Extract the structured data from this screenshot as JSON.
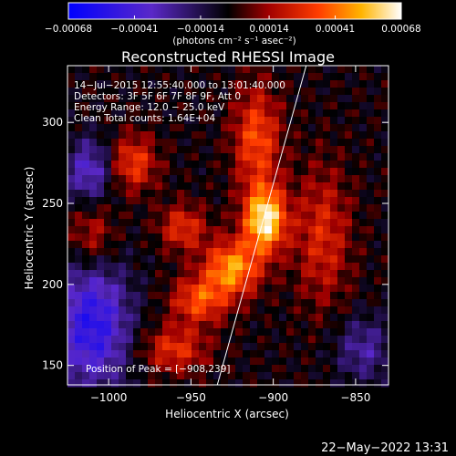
{
  "chart_data": {
    "type": "heatmap",
    "title": "Reconstructed RHESSI Image",
    "xlabel": "Heliocentric X (arcsec)",
    "ylabel": "Heliocentric Y (arcsec)",
    "xlim": [
      -1025,
      -830
    ],
    "ylim": [
      138,
      335
    ],
    "x_ticks": [
      -1000,
      -950,
      -900,
      -850
    ],
    "y_ticks": [
      150,
      200,
      250,
      300
    ],
    "x_tick_labels": [
      "−1000",
      "−950",
      "−900",
      "−850"
    ],
    "y_tick_labels": [
      "150",
      "200",
      "250",
      "300"
    ],
    "colorbar": {
      "range": [
        -0.00068,
        0.00068
      ],
      "ticks": [
        -0.00068,
        -0.00041,
        -0.00014,
        0.00014,
        0.00041,
        0.00068
      ],
      "tick_labels": [
        "−0.00068",
        "−0.00041",
        "−0.00014",
        "0.00014",
        "0.00041",
        "0.00068"
      ],
      "unit_label": "(photons cm⁻² s⁻¹ asec⁻²)"
    },
    "annotations": [
      "14−Jul−2015 12:55:40.000 to 13:01:40.000",
      "Detectors: 3F 5F 6F 7F 8F 9F, Att 0",
      "Energy Range: 12.0 − 25.0 keV",
      "Clean      Total counts: 1.64E+04"
    ],
    "peak_label": "Position of Peak = [−908,239]",
    "peak": [
      -908,
      239
    ],
    "limb_line": [
      [
        -934,
        138
      ],
      [
        -880,
        335
      ]
    ],
    "hot_spots": [
      {
        "x": -905,
        "y": 240,
        "amp": 1.0,
        "sx": 9,
        "sy": 14
      },
      {
        "x": -925,
        "y": 210,
        "amp": 0.75,
        "sx": 12,
        "sy": 12
      },
      {
        "x": -945,
        "y": 190,
        "amp": 0.55,
        "sx": 12,
        "sy": 10
      },
      {
        "x": -910,
        "y": 290,
        "amp": 0.55,
        "sx": 10,
        "sy": 22
      },
      {
        "x": -985,
        "y": 275,
        "amp": 0.5,
        "sx": 10,
        "sy": 12
      },
      {
        "x": -955,
        "y": 235,
        "amp": 0.45,
        "sx": 10,
        "sy": 10
      },
      {
        "x": -960,
        "y": 160,
        "amp": 0.45,
        "sx": 14,
        "sy": 10
      },
      {
        "x": -870,
        "y": 230,
        "amp": 0.4,
        "sx": 12,
        "sy": 30
      },
      {
        "x": -1010,
        "y": 230,
        "amp": 0.35,
        "sx": 10,
        "sy": 15
      }
    ],
    "cold_spots": [
      {
        "x": -1010,
        "y": 175,
        "amp": 0.8,
        "sx": 16,
        "sy": 28
      },
      {
        "x": -1012,
        "y": 270,
        "amp": 0.55,
        "sx": 10,
        "sy": 14
      },
      {
        "x": -845,
        "y": 160,
        "amp": 0.4,
        "sx": 12,
        "sy": 14
      }
    ]
  },
  "footer": {
    "timestamp": "22−May−2022 13:31"
  }
}
